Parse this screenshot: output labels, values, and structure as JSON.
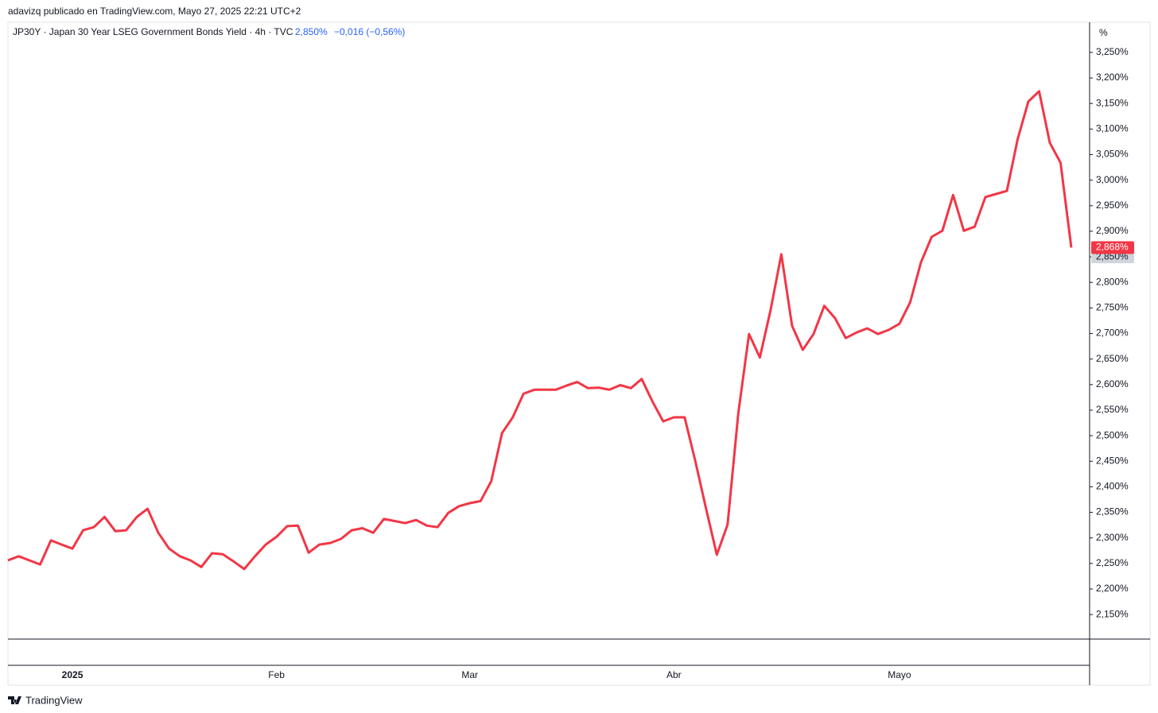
{
  "header": "adavizq publicado en TradingView.com, Mayo 27, 2025 22:21 UTC+2",
  "footer": "TradingView",
  "chart_data": {
    "type": "line",
    "title": "JP30Y · Japan 30 Year LSEG Government Bonds Yield · 4h · TVC",
    "close_label": {
      "value": 2.85,
      "label": "2,850%"
    },
    "change": "−0,016 (−0,56%)",
    "last_label": {
      "value": 2.868,
      "label": "2,868%"
    },
    "y_unit": "%",
    "grid": false,
    "categories": [
      null,
      null,
      null,
      null,
      null,
      null,
      "2025",
      null,
      null,
      null,
      null,
      null,
      null,
      null,
      null,
      null,
      null,
      null,
      null,
      null,
      null,
      null,
      null,
      null,
      null,
      "Feb",
      null,
      null,
      null,
      null,
      null,
      null,
      null,
      null,
      null,
      null,
      null,
      null,
      null,
      null,
      null,
      null,
      null,
      "Mar",
      null,
      null,
      null,
      null,
      null,
      null,
      null,
      null,
      null,
      null,
      null,
      null,
      null,
      null,
      null,
      null,
      null,
      null,
      "Abr",
      null,
      null,
      null,
      null,
      null,
      null,
      null,
      null,
      null,
      null,
      null,
      null,
      null,
      null,
      null,
      null,
      null,
      null,
      null,
      null,
      "Mayo",
      null,
      null,
      null,
      null,
      null,
      null,
      null,
      null,
      null,
      null,
      null,
      null,
      null,
      null,
      null,
      null
    ],
    "series": [
      {
        "name": "JP30Y",
        "color": "#f23645",
        "values": [
          2.256,
          2.264,
          2.256,
          2.248,
          2.295,
          2.287,
          2.279,
          2.315,
          2.321,
          2.341,
          2.313,
          2.315,
          2.341,
          2.357,
          2.31,
          2.279,
          2.264,
          2.256,
          2.243,
          2.27,
          2.268,
          2.254,
          2.239,
          2.264,
          2.287,
          2.302,
          2.323,
          2.324,
          2.271,
          2.287,
          2.29,
          2.298,
          2.315,
          2.319,
          2.31,
          2.337,
          2.333,
          2.329,
          2.335,
          2.324,
          2.321,
          2.349,
          2.362,
          2.368,
          2.372,
          2.411,
          2.505,
          2.536,
          2.582,
          2.59,
          2.59,
          2.59,
          2.598,
          2.605,
          2.593,
          2.594,
          2.59,
          2.599,
          2.593,
          2.611,
          2.567,
          2.528,
          2.536,
          2.536,
          2.45,
          2.357,
          2.267,
          2.326,
          2.544,
          2.699,
          2.653,
          2.746,
          2.855,
          2.715,
          2.668,
          2.699,
          2.754,
          2.73,
          2.691,
          2.702,
          2.71,
          2.699,
          2.707,
          2.719,
          2.761,
          2.839,
          2.889,
          2.901,
          2.971,
          2.901,
          2.909,
          2.967,
          2.973,
          2.979,
          3.08,
          3.154,
          3.174,
          3.073,
          3.034,
          2.868
        ]
      }
    ],
    "ylim": [
      2.102,
      3.309
    ],
    "yticks": [
      {
        "value": 2.15,
        "label": "2,150%"
      },
      {
        "value": 2.2,
        "label": "2,200%"
      },
      {
        "value": 2.25,
        "label": "2,250%"
      },
      {
        "value": 2.3,
        "label": "2,300%"
      },
      {
        "value": 2.35,
        "label": "2,350%"
      },
      {
        "value": 2.4,
        "label": "2,400%"
      },
      {
        "value": 2.45,
        "label": "2,450%"
      },
      {
        "value": 2.5,
        "label": "2,500%"
      },
      {
        "value": 2.55,
        "label": "2,550%"
      },
      {
        "value": 2.6,
        "label": "2,600%"
      },
      {
        "value": 2.65,
        "label": "2,650%"
      },
      {
        "value": 2.7,
        "label": "2,700%"
      },
      {
        "value": 2.75,
        "label": "2,750%"
      },
      {
        "value": 2.8,
        "label": "2,800%"
      },
      {
        "value": 2.85,
        "label": "2,850%"
      },
      {
        "value": 2.9,
        "label": "2,900%"
      },
      {
        "value": 2.95,
        "label": "2,950%"
      },
      {
        "value": 3.0,
        "label": "3,000%"
      },
      {
        "value": 3.05,
        "label": "3,050%"
      },
      {
        "value": 3.1,
        "label": "3,100%"
      },
      {
        "value": 3.15,
        "label": "3,150%"
      },
      {
        "value": 3.2,
        "label": "3,200%"
      },
      {
        "value": 3.25,
        "label": "3,250%"
      }
    ]
  }
}
